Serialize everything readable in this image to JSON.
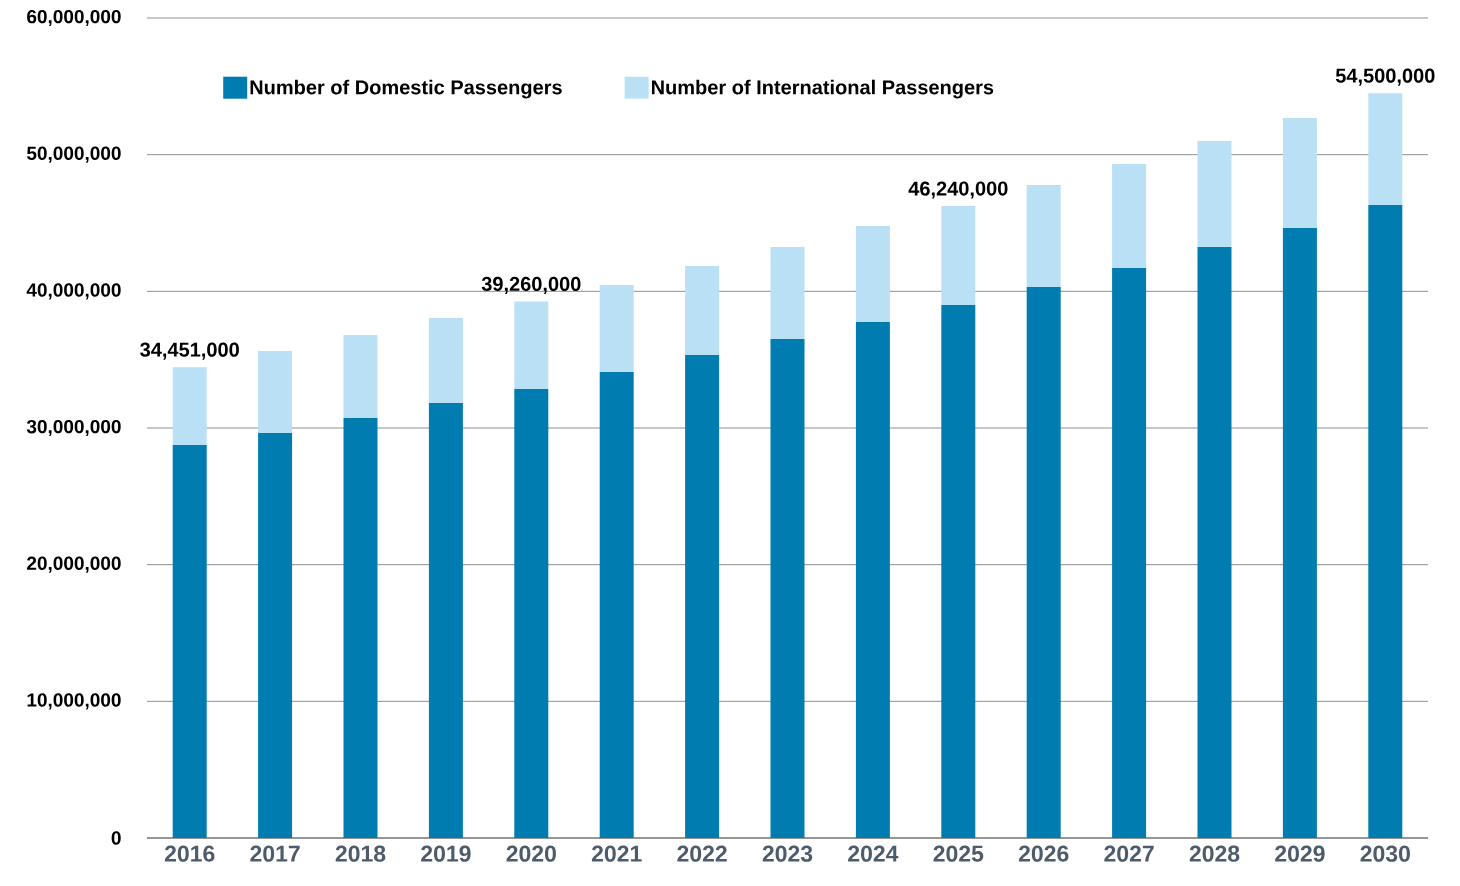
{
  "chart_data": {
    "type": "bar",
    "stacked": true,
    "categories": [
      "2016",
      "2017",
      "2018",
      "2019",
      "2020",
      "2021",
      "2022",
      "2023",
      "2024",
      "2025",
      "2026",
      "2027",
      "2028",
      "2029",
      "2030"
    ],
    "series": [
      {
        "name": "Number of Domestic Passengers",
        "color": "#007cb0",
        "values": [
          28760000,
          29630000,
          30730000,
          31830000,
          32850000,
          34100000,
          35340000,
          36510000,
          37760000,
          39000000,
          40320000,
          41710000,
          43240000,
          44630000,
          46320000
        ]
      },
      {
        "name": "Number of International Passengers",
        "color": "#b9e0f5",
        "values": [
          5691000,
          6000000,
          6070000,
          6220000,
          6410000,
          6360000,
          6510000,
          6730000,
          7020000,
          7240000,
          7460000,
          7610000,
          7760000,
          8050000,
          8180000
        ]
      }
    ],
    "totals": [
      "34,451,000",
      null,
      null,
      null,
      "39,260,000",
      null,
      null,
      null,
      null,
      "46,240,000",
      null,
      null,
      null,
      null,
      "54,500,000"
    ],
    "ylim": [
      0,
      60000000
    ],
    "yticks": [
      {
        "value": 0,
        "label": "0"
      },
      {
        "value": 10000000,
        "label": "10,000,000"
      },
      {
        "value": 20000000,
        "label": "20,000,000"
      },
      {
        "value": 30000000,
        "label": "30,000,000"
      },
      {
        "value": 40000000,
        "label": "40,000,000"
      },
      {
        "value": 50000000,
        "label": "50,000,000"
      },
      {
        "value": 60000000,
        "label": "60,000,000"
      }
    ],
    "grid": "y",
    "legend": "top left"
  }
}
